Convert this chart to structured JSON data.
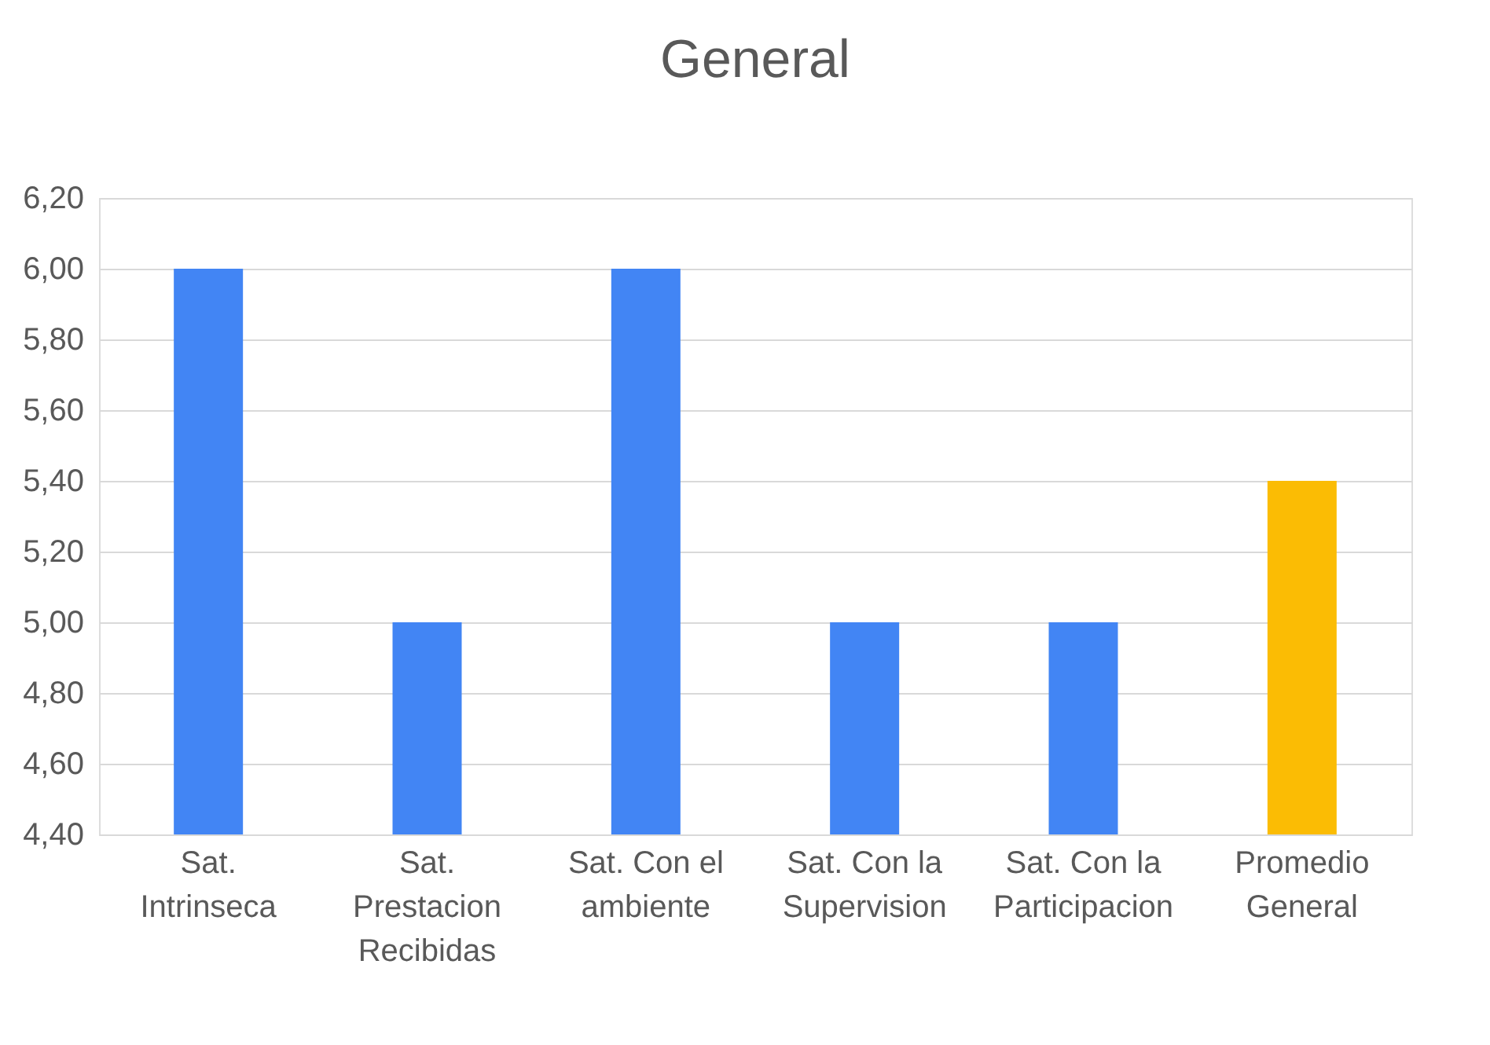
{
  "chart_data": {
    "type": "bar",
    "title": "General",
    "categories": [
      "Sat. Intrinseca",
      "Sat. Prestacion Recibidas",
      "Sat. Con el ambiente",
      "Sat. Con la Supervision",
      "Sat. Con la Participacion",
      "Promedio General"
    ],
    "values": [
      6.0,
      5.0,
      6.0,
      5.0,
      5.0,
      5.4
    ],
    "colors": [
      "#4285f4",
      "#4285f4",
      "#4285f4",
      "#4285f4",
      "#4285f4",
      "#fbbc04"
    ],
    "ylim": [
      4.4,
      6.2
    ],
    "yticks": [
      {
        "value": 4.4,
        "label": "4,40"
      },
      {
        "value": 4.6,
        "label": "4,60"
      },
      {
        "value": 4.8,
        "label": "4,80"
      },
      {
        "value": 5.0,
        "label": "5,00"
      },
      {
        "value": 5.2,
        "label": "5,20"
      },
      {
        "value": 5.4,
        "label": "5,40"
      },
      {
        "value": 5.6,
        "label": "5,60"
      },
      {
        "value": 5.8,
        "label": "5,80"
      },
      {
        "value": 6.0,
        "label": "6,00"
      },
      {
        "value": 6.2,
        "label": "6,20"
      }
    ],
    "grid": "y"
  }
}
